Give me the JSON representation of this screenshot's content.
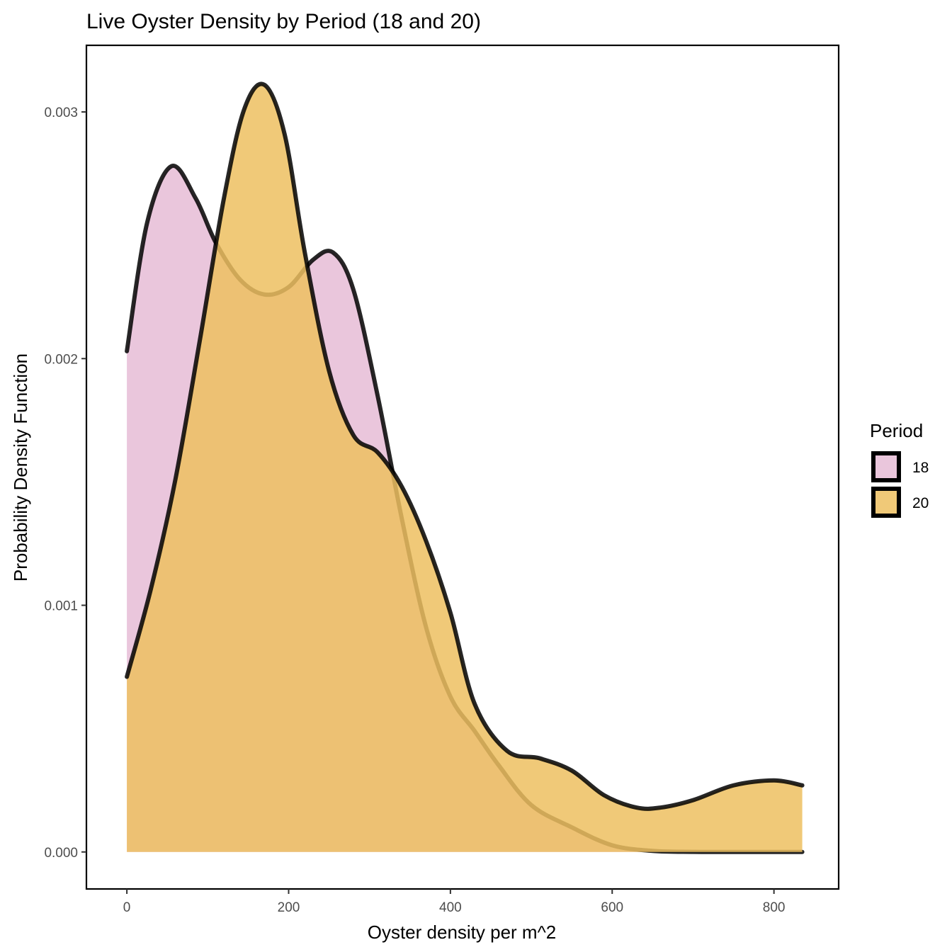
{
  "chart_data": {
    "type": "area",
    "title": "Live Oyster Density by Period (18 and 20)",
    "xlabel": "Oyster density per m^2",
    "ylabel": "Probability Density Function",
    "xlim": [
      -50,
      880
    ],
    "ylim": [
      -0.00015,
      0.00327
    ],
    "x_ticks": [
      0,
      200,
      400,
      600,
      800
    ],
    "x_tick_labels": [
      "0",
      "200",
      "400",
      "600",
      "800"
    ],
    "y_ticks": [
      0.0,
      0.001,
      0.002,
      0.003
    ],
    "y_tick_labels": [
      "0.000",
      "0.001",
      "0.002",
      "0.003"
    ],
    "grid": false,
    "legend": {
      "title": "Period",
      "position": "right"
    },
    "series": [
      {
        "name": "18",
        "color": "#E6BCD6",
        "x": [
          0,
          25,
          55,
          85,
          110,
          140,
          170,
          200,
          230,
          255,
          280,
          310,
          340,
          370,
          400,
          430,
          460,
          500,
          550,
          600,
          650,
          700,
          750,
          800,
          835
        ],
        "y": [
          0.00203,
          0.00255,
          0.00278,
          0.00265,
          0.00247,
          0.00232,
          0.00226,
          0.00229,
          0.0024,
          0.00243,
          0.00228,
          0.00185,
          0.00135,
          0.00091,
          0.00063,
          0.00049,
          0.00035,
          0.00019,
          0.0001,
          2.7e-05,
          4.5e-06,
          5e-07,
          2e-07,
          1e-07,
          1e-07
        ]
      },
      {
        "name": "20",
        "color": "#EDC060",
        "x": [
          0,
          30,
          60,
          90,
          120,
          145,
          170,
          195,
          220,
          250,
          280,
          310,
          340,
          370,
          400,
          430,
          470,
          510,
          550,
          590,
          630,
          660,
          700,
          750,
          800,
          835
        ],
        "y": [
          0.00071,
          0.00107,
          0.00151,
          0.00207,
          0.00265,
          0.00301,
          0.00311,
          0.00291,
          0.00243,
          0.00195,
          0.00169,
          0.00162,
          0.00148,
          0.00126,
          0.00097,
          0.0006,
          0.00041,
          0.00038,
          0.00033,
          0.00023,
          0.00018,
          0.00018,
          0.00021,
          0.00027,
          0.00029,
          0.00027
        ]
      }
    ]
  }
}
